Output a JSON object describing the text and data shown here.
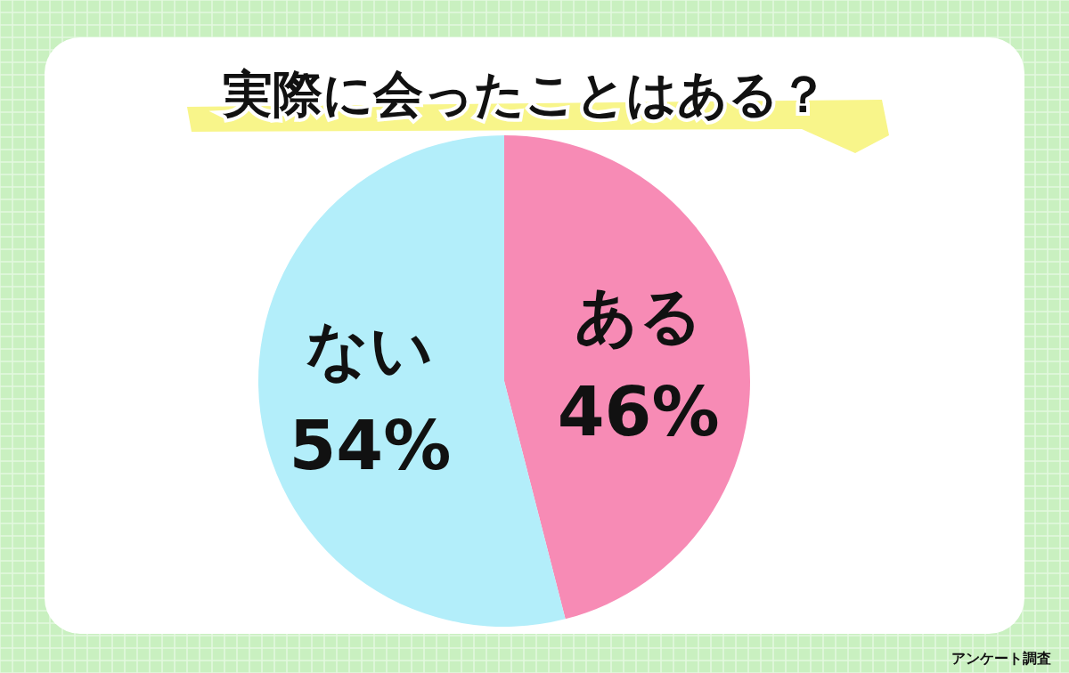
{
  "chart_data": {
    "type": "pie",
    "title": "実際に会ったことはある？",
    "categories": [
      "ある",
      "ない"
    ],
    "values": [
      46,
      54
    ],
    "colors": [
      "#f78bb5",
      "#b3eefa"
    ],
    "value_labels": [
      "46%",
      "54%"
    ],
    "annotations": [
      "アンケート調査"
    ]
  }
}
